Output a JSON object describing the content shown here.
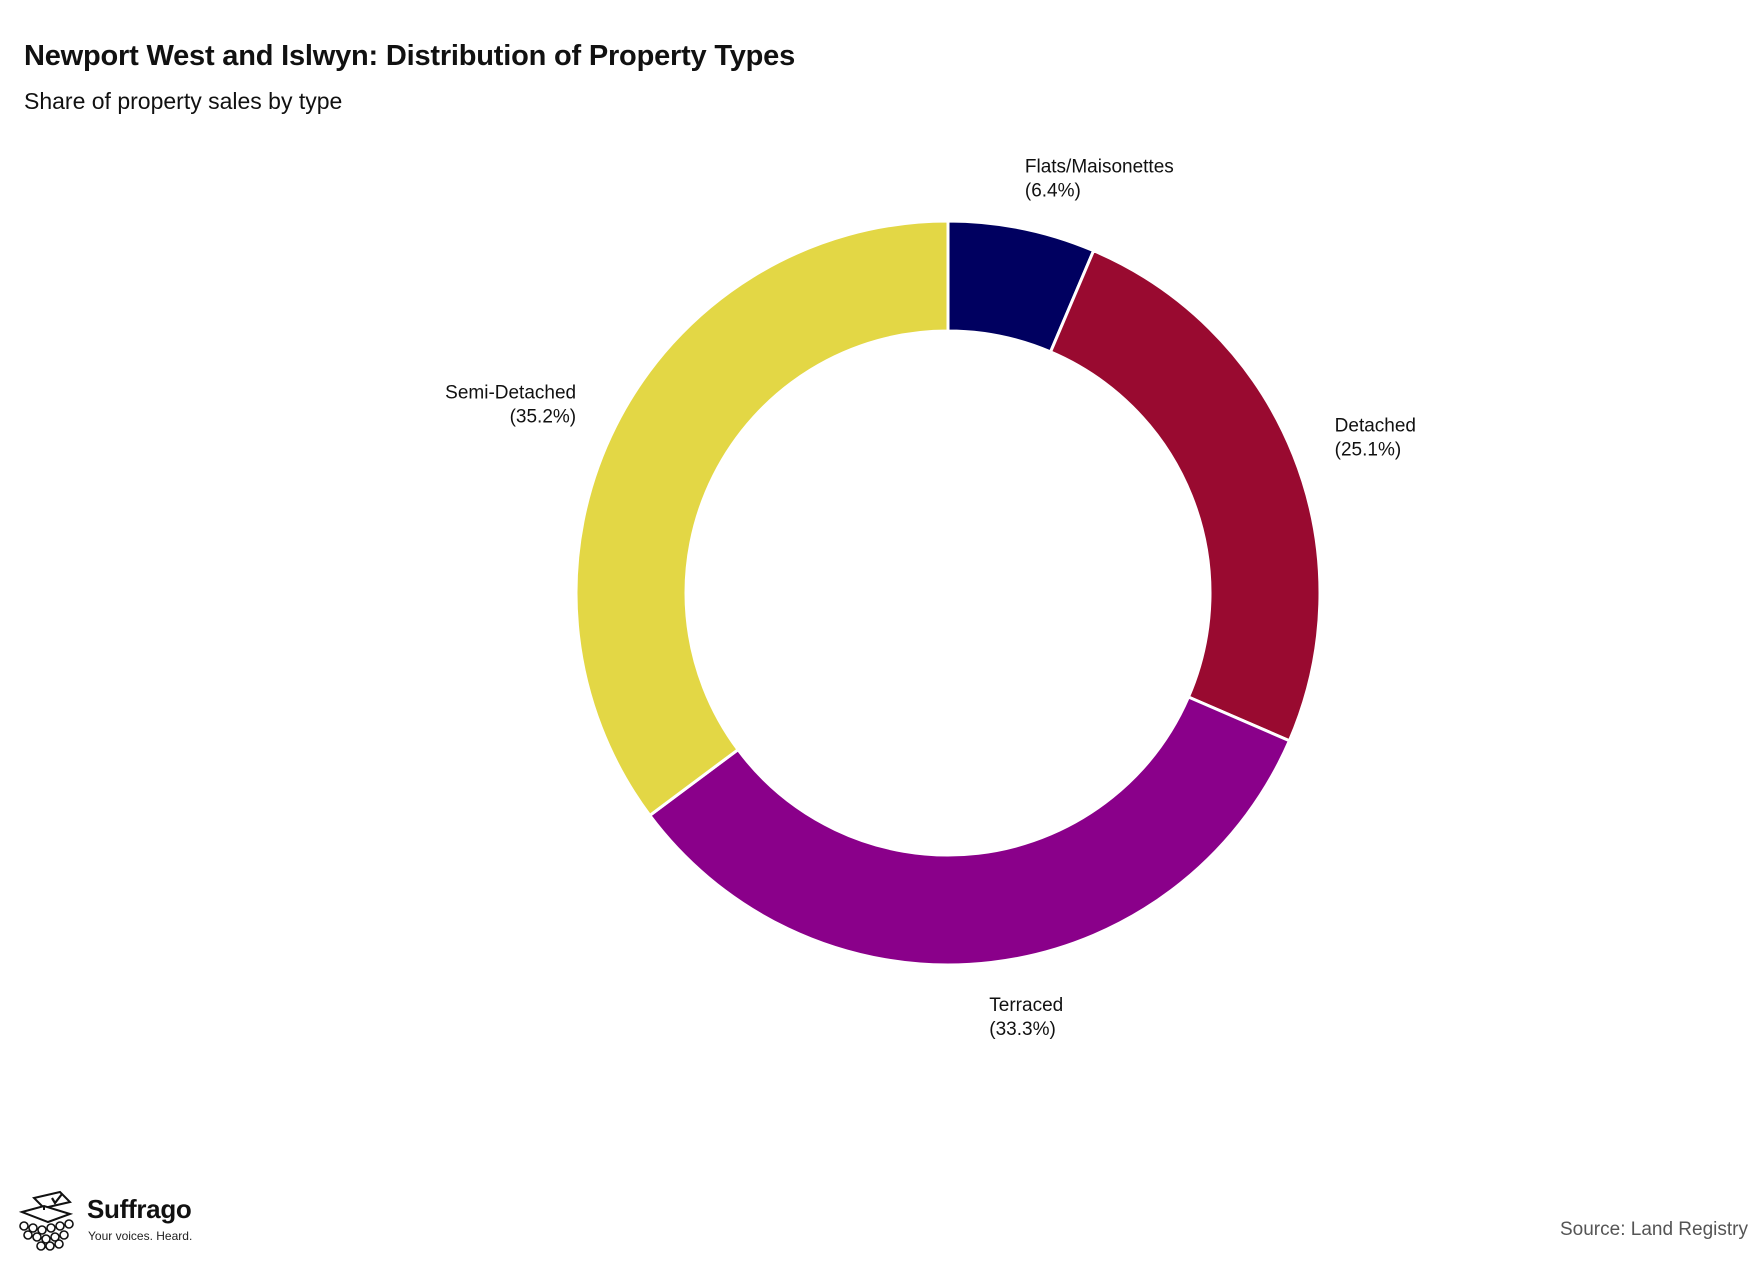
{
  "title": "Newport West and Islwyn: Distribution of Property Types",
  "subtitle": "Share of property sales by type",
  "source": "Source: Land Registry",
  "brand": {
    "name": "Suffrago",
    "tagline": "Your voices. Heard."
  },
  "chart_data": {
    "type": "pie",
    "donut": true,
    "start_angle_deg": 0,
    "direction": "clockwise",
    "slices": [
      {
        "label": "Flats/Maisonettes",
        "value": 6.4,
        "display": "(6.4%)",
        "color": "#000060"
      },
      {
        "label": "Detached",
        "value": 25.1,
        "display": "(25.1%)",
        "color": "#990a30"
      },
      {
        "label": "Terraced",
        "value": 33.3,
        "display": "(33.3%)",
        "color": "#8a008a"
      },
      {
        "label": "Semi-Detached",
        "value": 35.2,
        "display": "(35.2%)",
        "color": "#e3d745"
      }
    ]
  }
}
